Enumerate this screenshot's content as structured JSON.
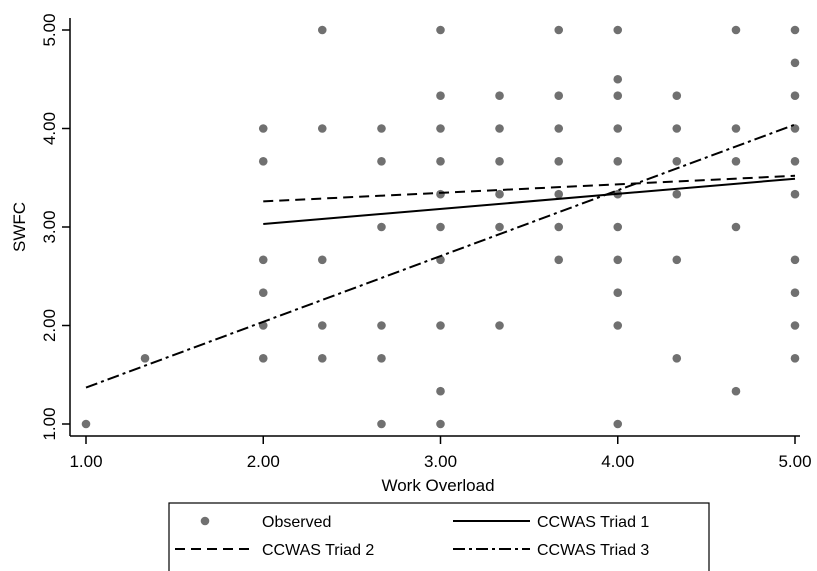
{
  "chart_data": {
    "type": "scatter",
    "xlabel": "Work Overload",
    "ylabel": "SWFC",
    "xlim": [
      1.0,
      5.0
    ],
    "ylim": [
      1.0,
      5.0
    ],
    "xticks": [
      "1.00",
      "2.00",
      "3.00",
      "4.00",
      "5.00"
    ],
    "yticks": [
      "1.00",
      "2.00",
      "3.00",
      "4.00",
      "5.00"
    ],
    "grid": false,
    "legend_position": "bottom",
    "legend": [
      "Observed",
      "CCWAS Triad 1",
      "CCWAS Triad 2",
      "CCWAS Triad 3"
    ],
    "series": [
      {
        "name": "Observed",
        "kind": "scatter",
        "color": "#707070",
        "points": [
          [
            1.0,
            1.0
          ],
          [
            1.333,
            1.667
          ],
          [
            2.0,
            1.667
          ],
          [
            2.0,
            2.0
          ],
          [
            2.0,
            2.333
          ],
          [
            2.0,
            2.667
          ],
          [
            2.0,
            3.667
          ],
          [
            2.0,
            4.0
          ],
          [
            2.333,
            1.667
          ],
          [
            2.333,
            2.0
          ],
          [
            2.333,
            2.667
          ],
          [
            2.333,
            4.0
          ],
          [
            2.333,
            5.0
          ],
          [
            2.667,
            1.0
          ],
          [
            2.667,
            1.667
          ],
          [
            2.667,
            2.0
          ],
          [
            2.667,
            3.0
          ],
          [
            2.667,
            3.667
          ],
          [
            2.667,
            4.0
          ],
          [
            3.0,
            1.0
          ],
          [
            3.0,
            1.333
          ],
          [
            3.0,
            2.0
          ],
          [
            3.0,
            2.667
          ],
          [
            3.0,
            3.0
          ],
          [
            3.0,
            3.333
          ],
          [
            3.0,
            3.667
          ],
          [
            3.0,
            4.0
          ],
          [
            3.0,
            4.333
          ],
          [
            3.0,
            5.0
          ],
          [
            3.333,
            2.0
          ],
          [
            3.333,
            3.0
          ],
          [
            3.333,
            3.333
          ],
          [
            3.333,
            3.667
          ],
          [
            3.333,
            4.0
          ],
          [
            3.333,
            4.333
          ],
          [
            3.667,
            2.667
          ],
          [
            3.667,
            3.0
          ],
          [
            3.667,
            3.333
          ],
          [
            3.667,
            3.667
          ],
          [
            3.667,
            4.0
          ],
          [
            3.667,
            4.333
          ],
          [
            3.667,
            5.0
          ],
          [
            4.0,
            1.0
          ],
          [
            4.0,
            2.0
          ],
          [
            4.0,
            2.333
          ],
          [
            4.0,
            2.667
          ],
          [
            4.0,
            3.0
          ],
          [
            4.0,
            3.333
          ],
          [
            4.0,
            3.667
          ],
          [
            4.0,
            4.0
          ],
          [
            4.0,
            4.333
          ],
          [
            4.0,
            4.5
          ],
          [
            4.0,
            5.0
          ],
          [
            4.333,
            1.667
          ],
          [
            4.333,
            2.667
          ],
          [
            4.333,
            3.333
          ],
          [
            4.333,
            3.667
          ],
          [
            4.333,
            4.0
          ],
          [
            4.333,
            4.333
          ],
          [
            4.667,
            1.333
          ],
          [
            4.667,
            3.0
          ],
          [
            4.667,
            3.667
          ],
          [
            4.667,
            4.0
          ],
          [
            4.667,
            5.0
          ],
          [
            5.0,
            1.667
          ],
          [
            5.0,
            2.0
          ],
          [
            5.0,
            2.333
          ],
          [
            5.0,
            2.667
          ],
          [
            5.0,
            3.333
          ],
          [
            5.0,
            3.667
          ],
          [
            5.0,
            4.0
          ],
          [
            5.0,
            4.333
          ],
          [
            5.0,
            4.667
          ],
          [
            5.0,
            5.0
          ]
        ]
      },
      {
        "name": "CCWAS Triad 1",
        "kind": "line",
        "dash": "solid",
        "points": [
          [
            2.0,
            3.03
          ],
          [
            5.0,
            3.49
          ]
        ]
      },
      {
        "name": "CCWAS Triad 2",
        "kind": "line",
        "dash": "dash",
        "points": [
          [
            2.0,
            3.26
          ],
          [
            5.0,
            3.52
          ]
        ]
      },
      {
        "name": "CCWAS Triad 3",
        "kind": "line",
        "dash": "dashdot",
        "points": [
          [
            1.0,
            1.37
          ],
          [
            5.0,
            4.04
          ]
        ]
      }
    ]
  }
}
